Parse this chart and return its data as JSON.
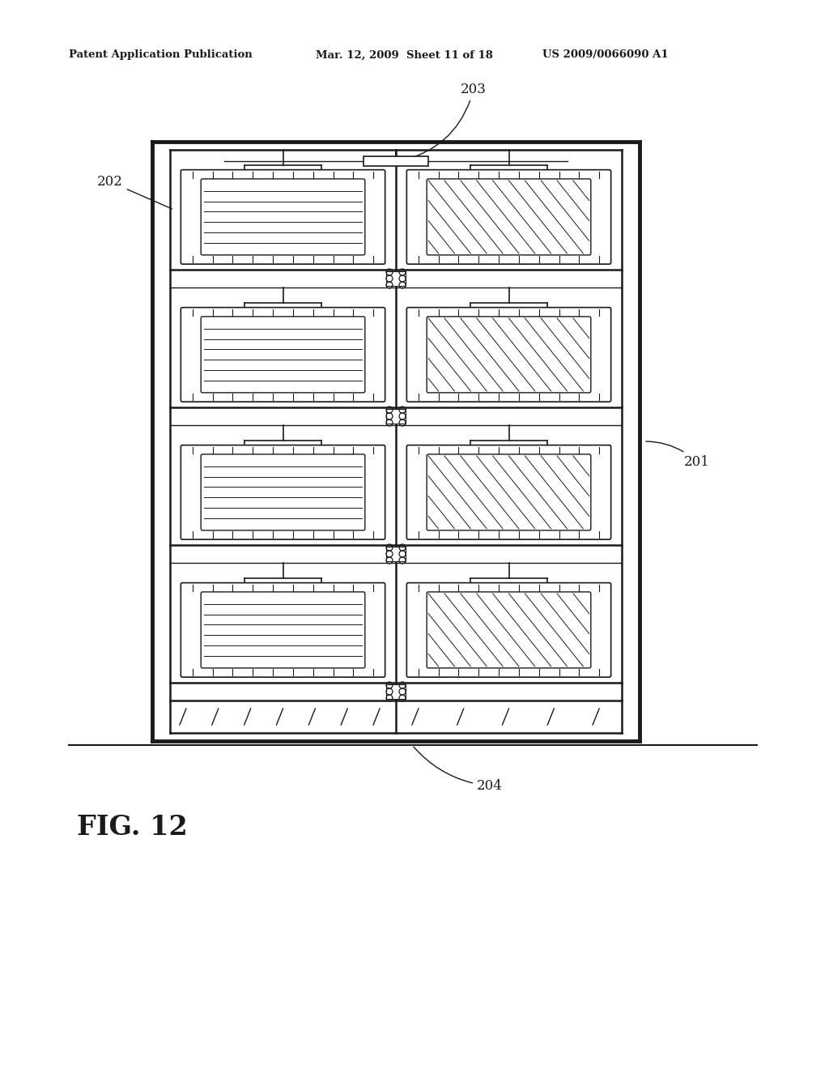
{
  "bg_color": "#ffffff",
  "line_color": "#1a1a1a",
  "header_left": "Patent Application Publication",
  "header_mid": "Mar. 12, 2009  Sheet 11 of 18",
  "header_right": "US 2009/0066090 A1",
  "figure_label": "FIG. 12",
  "label_201": "201",
  "label_202": "202",
  "label_203": "203",
  "label_204": "204"
}
